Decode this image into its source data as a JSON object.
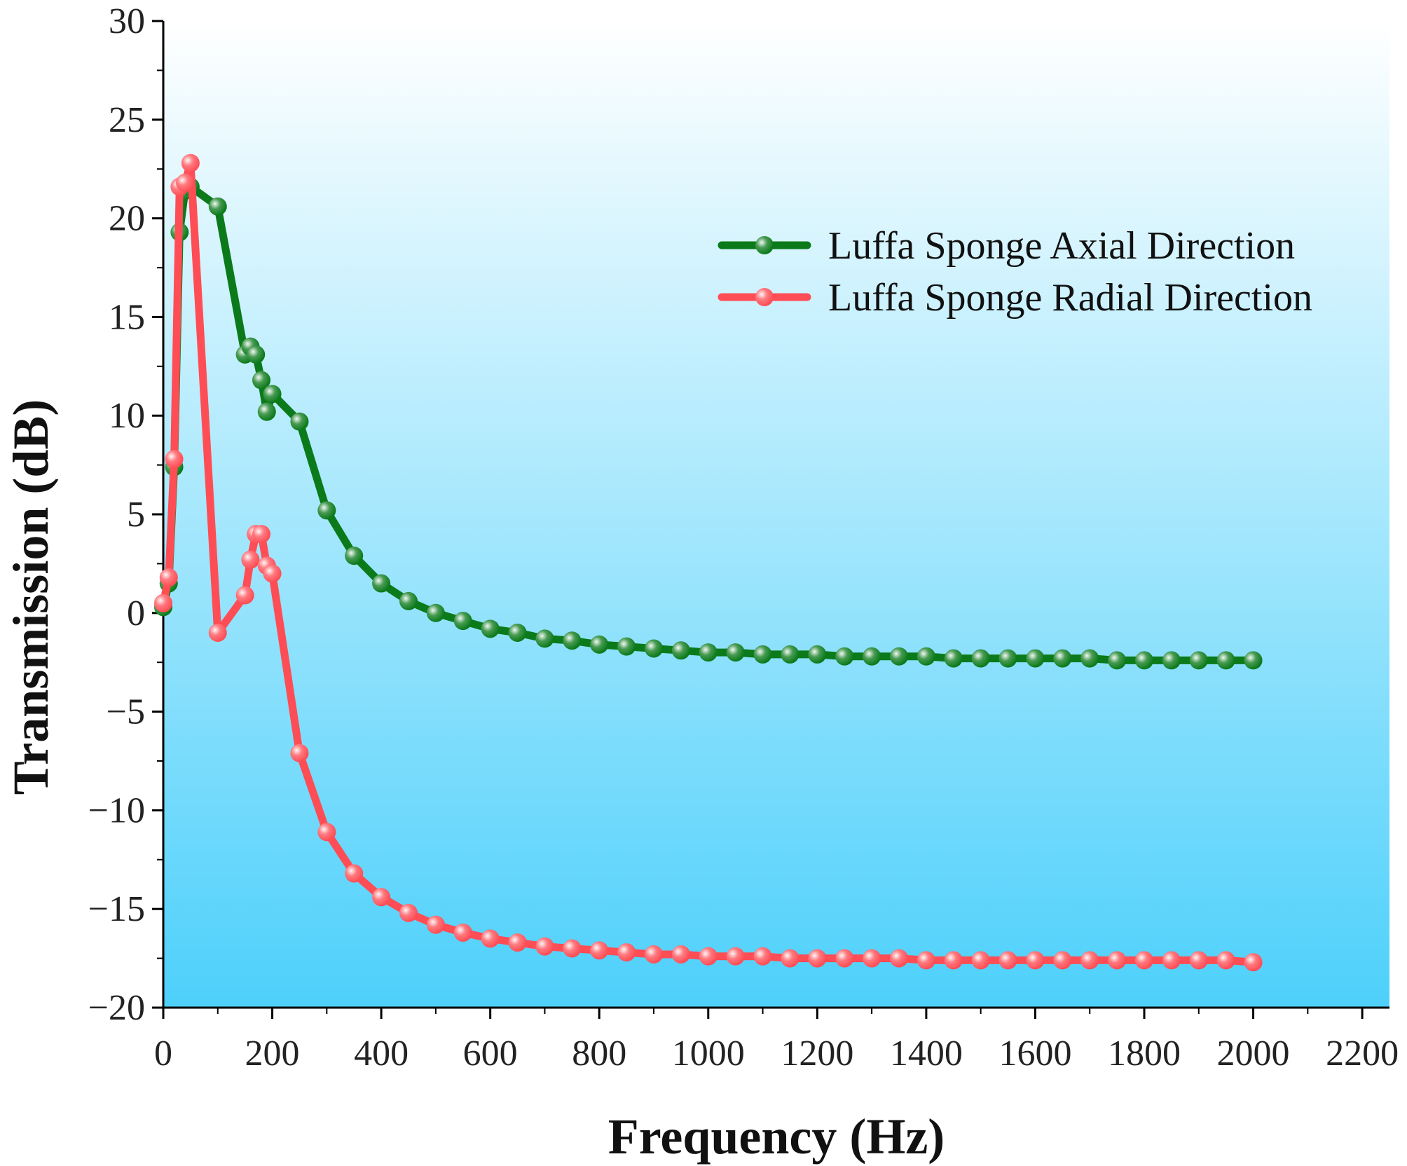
{
  "chart_data": {
    "type": "line",
    "title": "",
    "xlabel": "Frequency (Hz)",
    "ylabel": "Transmission (dB)",
    "xlim": [
      0,
      2250
    ],
    "ylim": [
      -20,
      30
    ],
    "x_ticks": [
      0,
      200,
      400,
      600,
      800,
      1000,
      1200,
      1400,
      1600,
      1800,
      2000,
      2200
    ],
    "y_ticks": [
      -20,
      -15,
      -10,
      -5,
      0,
      5,
      10,
      15,
      20,
      25,
      30
    ],
    "x_tick_labels": [
      "0",
      "200",
      "400",
      "600",
      "800",
      "1000",
      "1200",
      "1400",
      "1600",
      "1800",
      "2000",
      "2200"
    ],
    "y_tick_labels": [
      "−20",
      "−15",
      "−10",
      "−5",
      "0",
      "5",
      "10",
      "15",
      "20",
      "25",
      "30"
    ],
    "legend_position": "top-right",
    "background_gradient": {
      "top": "#ffffff",
      "bottom": "#4dd0fb"
    },
    "series": [
      {
        "name": "Luffa Sponge Axial Direction",
        "color": "#0b7a1a",
        "x": [
          0,
          10,
          20,
          30,
          40,
          50,
          100,
          150,
          160,
          170,
          180,
          190,
          200,
          250,
          300,
          350,
          400,
          450,
          500,
          550,
          600,
          650,
          700,
          750,
          800,
          850,
          900,
          950,
          1000,
          1050,
          1100,
          1150,
          1200,
          1250,
          1300,
          1350,
          1400,
          1450,
          1500,
          1550,
          1600,
          1650,
          1700,
          1750,
          1800,
          1850,
          1900,
          1950,
          2000
        ],
        "y": [
          0.3,
          1.5,
          7.4,
          19.3,
          21.4,
          21.6,
          20.6,
          13.1,
          13.5,
          13.1,
          11.8,
          10.2,
          11.1,
          9.7,
          5.2,
          2.9,
          1.5,
          0.6,
          0.0,
          -0.4,
          -0.8,
          -1.0,
          -1.3,
          -1.4,
          -1.6,
          -1.7,
          -1.8,
          -1.9,
          -2.0,
          -2.0,
          -2.1,
          -2.1,
          -2.1,
          -2.2,
          -2.2,
          -2.2,
          -2.2,
          -2.3,
          -2.3,
          -2.3,
          -2.3,
          -2.3,
          -2.3,
          -2.4,
          -2.4,
          -2.4,
          -2.4,
          -2.4,
          -2.4
        ]
      },
      {
        "name": "Luffa Sponge Radial Direction",
        "color": "#ff4d55",
        "x": [
          0,
          10,
          20,
          30,
          40,
          50,
          100,
          150,
          160,
          170,
          180,
          190,
          200,
          250,
          300,
          350,
          400,
          450,
          500,
          550,
          600,
          650,
          700,
          750,
          800,
          850,
          900,
          950,
          1000,
          1050,
          1100,
          1150,
          1200,
          1250,
          1300,
          1350,
          1400,
          1450,
          1500,
          1550,
          1600,
          1650,
          1700,
          1750,
          1800,
          1850,
          1900,
          1950,
          2000
        ],
        "y": [
          0.5,
          1.8,
          7.8,
          21.6,
          21.8,
          22.8,
          -1.0,
          0.9,
          2.7,
          4.0,
          4.0,
          2.4,
          2.0,
          -7.1,
          -11.1,
          -13.2,
          -14.4,
          -15.2,
          -15.8,
          -16.2,
          -16.5,
          -16.7,
          -16.9,
          -17.0,
          -17.1,
          -17.2,
          -17.3,
          -17.3,
          -17.4,
          -17.4,
          -17.4,
          -17.5,
          -17.5,
          -17.5,
          -17.5,
          -17.5,
          -17.6,
          -17.6,
          -17.6,
          -17.6,
          -17.6,
          -17.6,
          -17.6,
          -17.6,
          -17.6,
          -17.6,
          -17.6,
          -17.6,
          -17.7
        ]
      }
    ]
  }
}
